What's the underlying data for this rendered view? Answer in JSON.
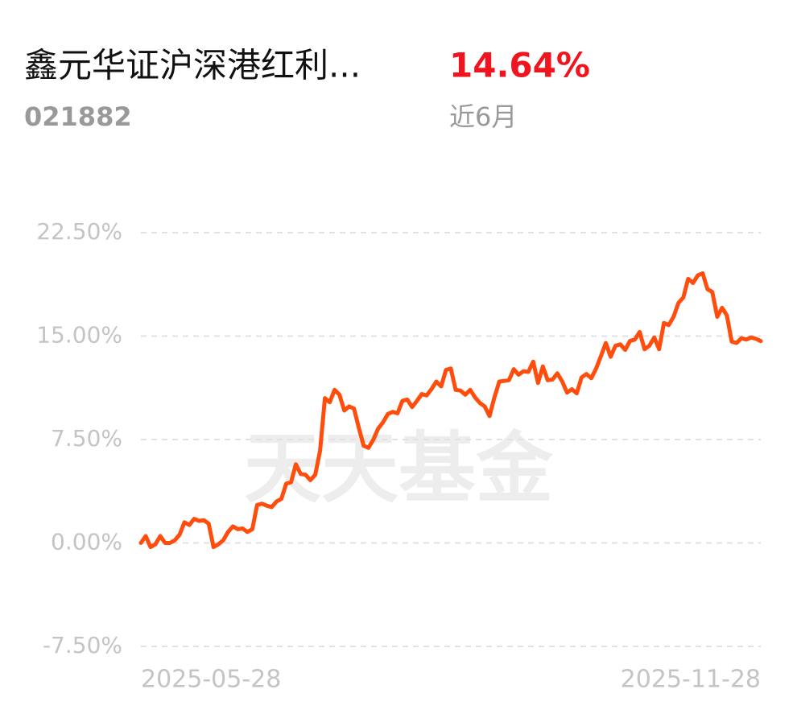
{
  "header": {
    "fund_name": "鑫元华证沪深港红利...",
    "fund_code": "021882",
    "return": "14.64%",
    "period": "近6月"
  },
  "chart_data": {
    "type": "line",
    "watermark": "天天基金",
    "categories": [
      "2025-05-28",
      null,
      null,
      null,
      null,
      null,
      null,
      null,
      null,
      null,
      null,
      null,
      null,
      null,
      null,
      null,
      null,
      null,
      null,
      null,
      null,
      null,
      null,
      null,
      null,
      null,
      null,
      null,
      null,
      null,
      null,
      null,
      null,
      null,
      null,
      null,
      null,
      null,
      null,
      null,
      null,
      null,
      null,
      null,
      null,
      null,
      null,
      null,
      null,
      null,
      null,
      null,
      null,
      null,
      null,
      null,
      null,
      null,
      null,
      null,
      null,
      null,
      null,
      null,
      null,
      null,
      null,
      null,
      null,
      null,
      null,
      null,
      null,
      null,
      null,
      null,
      null,
      null,
      null,
      null,
      null,
      null,
      null,
      null,
      null,
      null,
      null,
      null,
      null,
      null,
      null,
      null,
      null,
      null,
      null,
      null,
      null,
      null,
      null,
      null,
      null,
      null,
      null,
      null,
      null,
      null,
      null,
      null,
      null,
      null,
      null,
      null,
      null,
      null,
      null,
      null,
      null,
      null,
      null,
      null,
      null,
      null,
      null,
      null,
      null,
      null,
      null,
      null,
      "2025-11-28"
    ],
    "values": [
      0,
      0.5,
      -0.3,
      -0.1,
      0.5,
      0,
      0,
      0.2,
      0.6,
      1.5,
      1.3,
      1.75,
      1.6,
      1.65,
      1.4,
      -0.3,
      -0.1,
      0.2,
      0.8,
      1.2,
      1.0,
      1.05,
      0.8,
      1.0,
      2.75,
      2.85,
      2.7,
      2.6,
      3.0,
      3.2,
      4.3,
      4.4,
      5.7,
      5.0,
      4.95,
      4.55,
      4.95,
      6.7,
      10.5,
      10.2,
      11.1,
      10.75,
      9.6,
      9.9,
      9.75,
      8.35,
      7.05,
      6.9,
      7.5,
      8.3,
      8.75,
      9.35,
      9.5,
      9.4,
      10.3,
      10.4,
      9.85,
      10.3,
      10.8,
      10.7,
      11.15,
      11.7,
      11.35,
      12.55,
      12.65,
      11.1,
      11.05,
      10.75,
      11.1,
      10.55,
      10.15,
      9.9,
      9.2,
      10.55,
      11.7,
      11.75,
      11.8,
      12.6,
      12.2,
      12.45,
      12.4,
      13.15,
      11.6,
      12.8,
      11.8,
      11.85,
      12.3,
      11.7,
      10.9,
      11.15,
      10.85,
      12.0,
      12.25,
      11.95,
      12.65,
      13.55,
      14.5,
      13.5,
      14.3,
      14.4,
      14.0,
      14.65,
      14.75,
      15.3,
      14.05,
      14.3,
      14.9,
      14.05,
      15.95,
      15.8,
      16.4,
      17.4,
      17.8,
      19.15,
      18.85,
      19.4,
      19.55,
      18.4,
      18.2,
      16.4,
      17.05,
      16.5,
      14.6,
      14.5,
      14.85,
      14.75,
      14.9,
      14.8,
      14.64
    ],
    "color": "#ff4d0d",
    "ylim": [
      -7.5,
      22.5
    ],
    "yticks": [
      {
        "value": -7.5,
        "label": "-7.50%"
      },
      {
        "value": 0,
        "label": "0.00%"
      },
      {
        "value": 7.5,
        "label": "7.50%"
      },
      {
        "value": 15,
        "label": "15.00%"
      },
      {
        "value": 22.5,
        "label": "22.50%"
      }
    ],
    "grid": true
  }
}
